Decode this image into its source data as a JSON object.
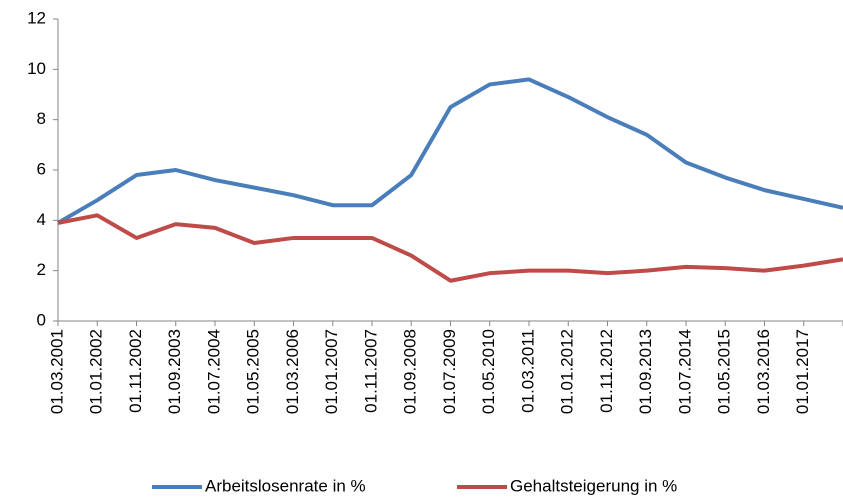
{
  "chart_data": {
    "type": "line",
    "categories": [
      "01.03.2001",
      "01.01.2002",
      "01.11.2002",
      "01.09.2003",
      "01.07.2004",
      "01.05.2005",
      "01.03.2006",
      "01.01.2007",
      "01.11.2007",
      "01.09.2008",
      "01.07.2009",
      "01.05.2010",
      "01.03.2011",
      "01.01.2012",
      "01.11.2012",
      "01.09.2013",
      "01.07.2014",
      "01.05.2015",
      "01.03.2016",
      "01.01.2017",
      null
    ],
    "series": [
      {
        "name": "Arbeitslosenrate in %",
        "color": "#4a7ebb",
        "values": [
          3.9,
          4.8,
          5.8,
          6.0,
          5.6,
          5.3,
          5.0,
          4.6,
          4.6,
          5.8,
          8.5,
          9.4,
          9.6,
          8.9,
          8.1,
          7.4,
          6.3,
          5.7,
          5.2,
          4.85,
          4.5
        ]
      },
      {
        "name": "Gehaltsteigerung in %",
        "color": "#be4b48",
        "values": [
          3.9,
          4.2,
          3.3,
          3.85,
          3.7,
          3.1,
          3.3,
          3.3,
          3.3,
          2.6,
          1.6,
          1.9,
          2.0,
          2.0,
          1.9,
          2.0,
          2.15,
          2.1,
          2.0,
          2.2,
          2.45
        ]
      }
    ],
    "ylim": [
      0,
      12
    ],
    "yticks": [
      0,
      2,
      4,
      6,
      8,
      10,
      12
    ],
    "grid": false,
    "legend": "bottom"
  }
}
